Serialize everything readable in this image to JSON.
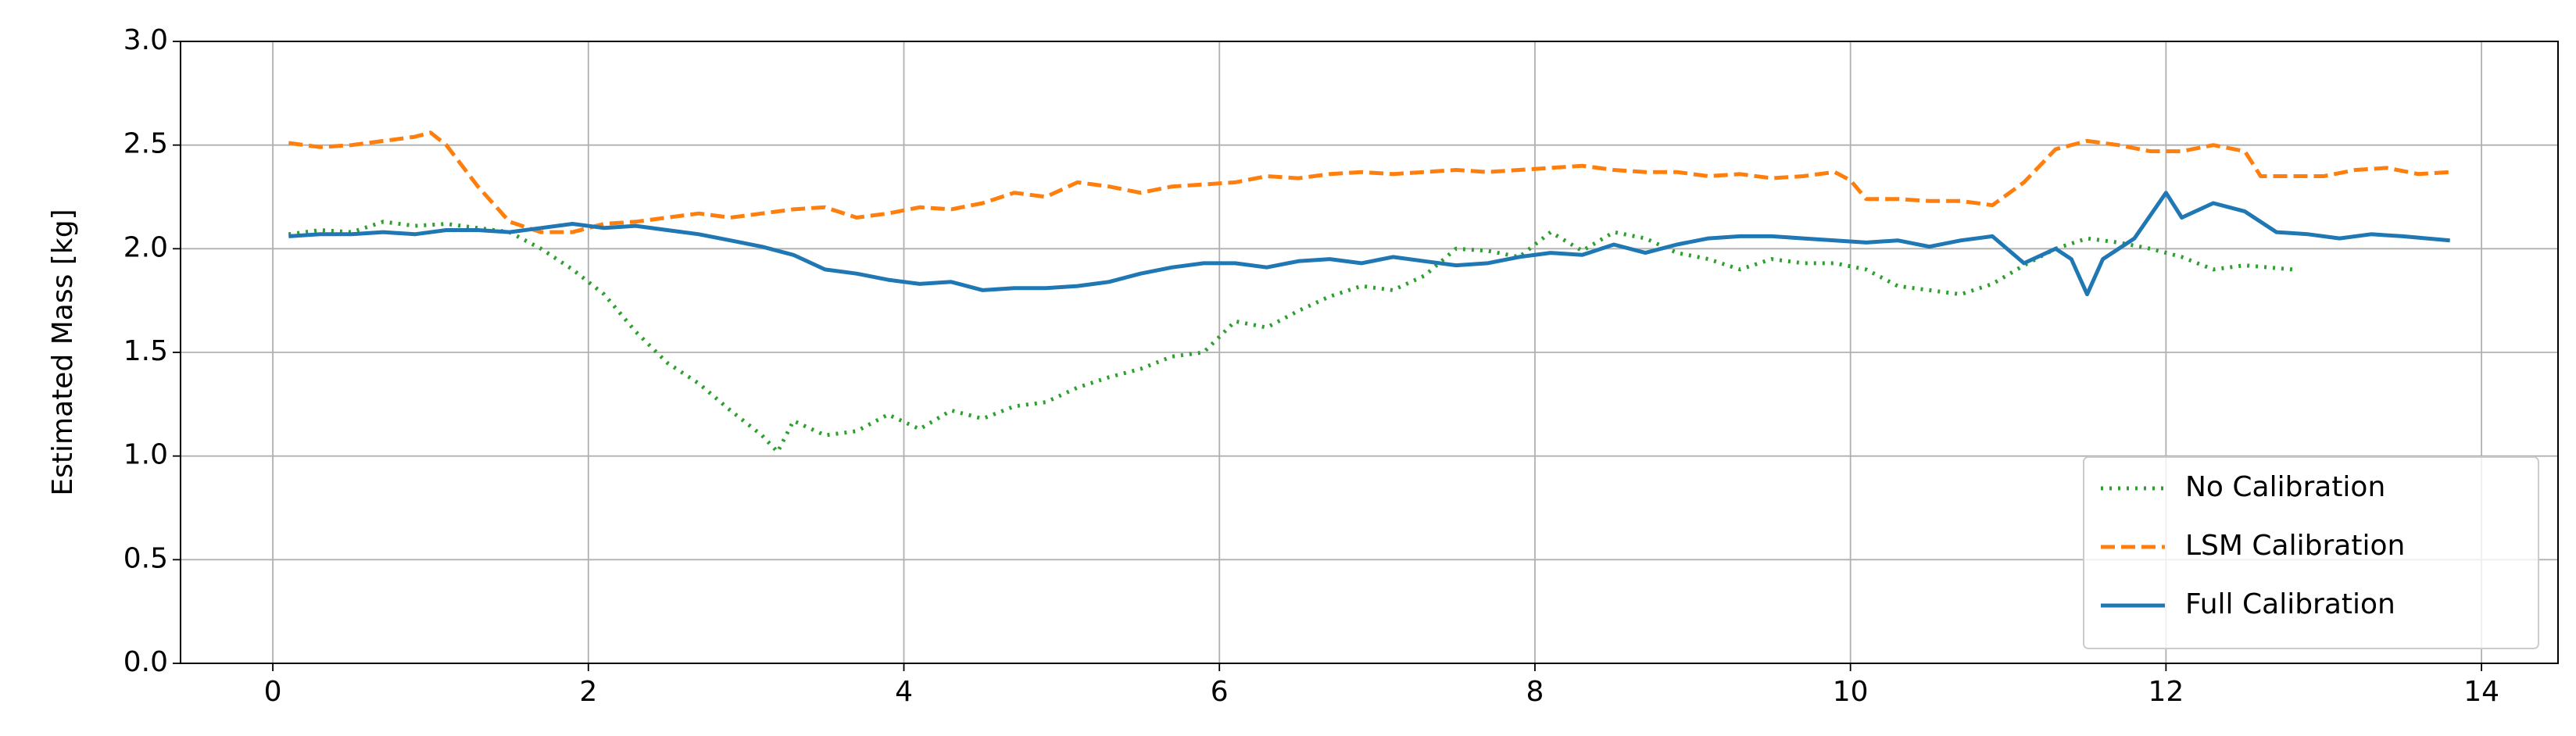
{
  "chart_data": {
    "type": "line",
    "ylabel": "Estimated Mass [kg]",
    "xlim": [
      -0.585,
      14.485
    ],
    "ylim": [
      0,
      3
    ],
    "xticks": [
      0,
      2,
      4,
      6,
      8,
      10,
      12,
      14
    ],
    "yticks": [
      {
        "value": 0,
        "label": "0.0"
      },
      {
        "value": 0.5,
        "label": "0.5"
      },
      {
        "value": 1,
        "label": "1.0"
      },
      {
        "value": 1.5,
        "label": "1.5"
      },
      {
        "value": 2,
        "label": "2.0"
      },
      {
        "value": 2.5,
        "label": "2.5"
      },
      {
        "value": 3,
        "label": "3.0"
      }
    ],
    "grid": true,
    "legend": "lower right",
    "series": [
      {
        "name": "No Calibration",
        "color": "#2ca02c",
        "style": "dotted",
        "x": [
          0.1,
          0.3,
          0.5,
          0.7,
          0.9,
          1.1,
          1.3,
          1.5,
          1.7,
          1.9,
          2.1,
          2.3,
          2.5,
          2.7,
          2.9,
          3.1,
          3.2,
          3.3,
          3.5,
          3.7,
          3.9,
          4.1,
          4.3,
          4.5,
          4.7,
          4.9,
          5.1,
          5.3,
          5.5,
          5.7,
          5.9,
          6.1,
          6.3,
          6.5,
          6.7,
          6.9,
          7.1,
          7.3,
          7.5,
          7.7,
          7.9,
          8.1,
          8.3,
          8.5,
          8.7,
          8.9,
          9.1,
          9.3,
          9.5,
          9.7,
          9.9,
          10.1,
          10.3,
          10.5,
          10.7,
          10.9,
          11.1,
          11.3,
          11.5,
          11.7,
          11.9,
          12.1,
          12.3,
          12.5,
          12.8
        ],
        "values": [
          2.07,
          2.09,
          2.08,
          2.13,
          2.11,
          2.12,
          2.1,
          2.08,
          2.0,
          1.9,
          1.78,
          1.6,
          1.45,
          1.35,
          1.22,
          1.1,
          1.02,
          1.17,
          1.1,
          1.12,
          1.2,
          1.13,
          1.22,
          1.18,
          1.24,
          1.26,
          1.33,
          1.38,
          1.42,
          1.48,
          1.5,
          1.65,
          1.62,
          1.7,
          1.77,
          1.82,
          1.8,
          1.87,
          2.0,
          1.99,
          1.96,
          2.08,
          1.99,
          2.08,
          2.05,
          1.98,
          1.95,
          1.9,
          1.95,
          1.93,
          1.93,
          1.9,
          1.82,
          1.8,
          1.78,
          1.83,
          1.92,
          2.0,
          2.05,
          2.03,
          2.0,
          1.96,
          1.9,
          1.92,
          1.9
        ]
      },
      {
        "name": "LSM Calibration",
        "color": "#ff7f0e",
        "style": "dashed",
        "x": [
          0.1,
          0.3,
          0.5,
          0.7,
          0.9,
          1.0,
          1.1,
          1.3,
          1.5,
          1.7,
          1.9,
          2.1,
          2.3,
          2.5,
          2.7,
          2.9,
          3.1,
          3.3,
          3.5,
          3.7,
          3.9,
          4.1,
          4.3,
          4.5,
          4.7,
          4.9,
          5.1,
          5.3,
          5.5,
          5.7,
          5.9,
          6.1,
          6.3,
          6.5,
          6.7,
          6.9,
          7.1,
          7.3,
          7.5,
          7.7,
          7.9,
          8.1,
          8.3,
          8.5,
          8.7,
          8.9,
          9.1,
          9.3,
          9.5,
          9.7,
          9.9,
          10.0,
          10.1,
          10.3,
          10.5,
          10.7,
          10.9,
          11.1,
          11.3,
          11.5,
          11.7,
          11.9,
          12.1,
          12.3,
          12.5,
          12.6,
          12.8,
          13.0,
          13.2,
          13.4,
          13.6,
          13.8
        ],
        "values": [
          2.51,
          2.49,
          2.5,
          2.52,
          2.54,
          2.56,
          2.5,
          2.3,
          2.13,
          2.08,
          2.08,
          2.12,
          2.13,
          2.15,
          2.17,
          2.15,
          2.17,
          2.19,
          2.2,
          2.15,
          2.17,
          2.2,
          2.19,
          2.22,
          2.27,
          2.25,
          2.32,
          2.3,
          2.27,
          2.3,
          2.31,
          2.32,
          2.35,
          2.34,
          2.36,
          2.37,
          2.36,
          2.37,
          2.38,
          2.37,
          2.38,
          2.39,
          2.4,
          2.38,
          2.37,
          2.37,
          2.35,
          2.36,
          2.34,
          2.35,
          2.37,
          2.33,
          2.24,
          2.24,
          2.23,
          2.23,
          2.21,
          2.32,
          2.48,
          2.52,
          2.5,
          2.47,
          2.47,
          2.5,
          2.47,
          2.35,
          2.35,
          2.35,
          2.38,
          2.39,
          2.36,
          2.37
        ]
      },
      {
        "name": "Full Calibration",
        "color": "#1f77b4",
        "style": "solid",
        "x": [
          0.1,
          0.3,
          0.5,
          0.7,
          0.9,
          1.1,
          1.3,
          1.5,
          1.7,
          1.9,
          2.1,
          2.3,
          2.5,
          2.7,
          2.9,
          3.1,
          3.3,
          3.5,
          3.7,
          3.9,
          4.1,
          4.3,
          4.5,
          4.7,
          4.9,
          5.1,
          5.3,
          5.5,
          5.7,
          5.9,
          6.1,
          6.3,
          6.5,
          6.7,
          6.9,
          7.1,
          7.3,
          7.5,
          7.7,
          7.9,
          8.1,
          8.3,
          8.5,
          8.7,
          8.9,
          9.1,
          9.3,
          9.5,
          9.7,
          9.9,
          10.1,
          10.3,
          10.5,
          10.7,
          10.9,
          11.1,
          11.3,
          11.4,
          11.5,
          11.6,
          11.8,
          12.0,
          12.1,
          12.3,
          12.5,
          12.7,
          12.9,
          13.1,
          13.3,
          13.5,
          13.8
        ],
        "values": [
          2.06,
          2.07,
          2.07,
          2.08,
          2.07,
          2.09,
          2.09,
          2.08,
          2.1,
          2.12,
          2.1,
          2.11,
          2.09,
          2.07,
          2.04,
          2.01,
          1.97,
          1.9,
          1.88,
          1.85,
          1.83,
          1.84,
          1.8,
          1.81,
          1.81,
          1.82,
          1.84,
          1.88,
          1.91,
          1.93,
          1.93,
          1.91,
          1.94,
          1.95,
          1.93,
          1.96,
          1.94,
          1.92,
          1.93,
          1.96,
          1.98,
          1.97,
          2.02,
          1.98,
          2.02,
          2.05,
          2.06,
          2.06,
          2.05,
          2.04,
          2.03,
          2.04,
          2.01,
          2.04,
          2.06,
          1.93,
          2.0,
          1.95,
          1.78,
          1.95,
          2.05,
          2.27,
          2.15,
          2.22,
          2.18,
          2.08,
          2.07,
          2.05,
          2.07,
          2.06,
          2.04
        ]
      }
    ]
  }
}
